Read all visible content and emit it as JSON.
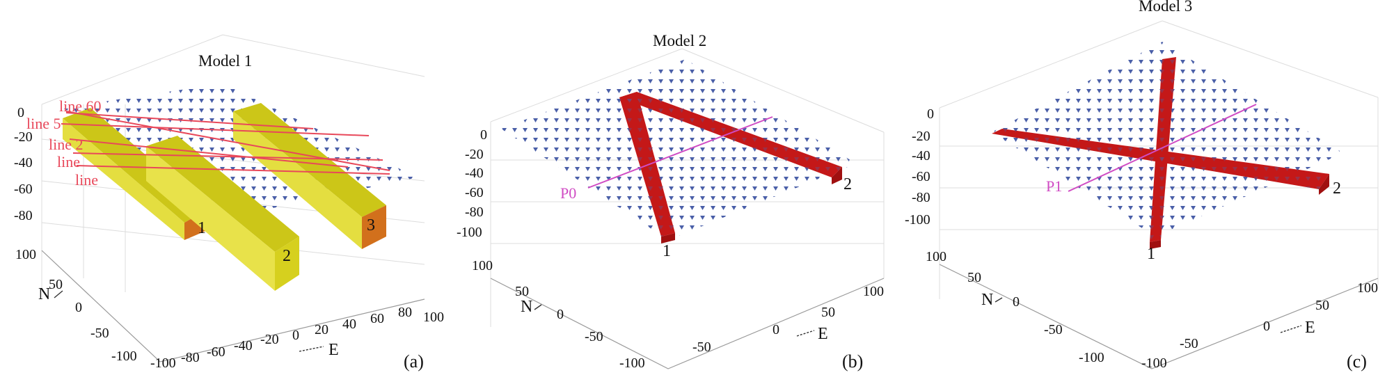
{
  "panels": [
    {
      "title": "Model 1",
      "caption": "(a)",
      "z_ticks": [
        "0",
        "-20",
        "-40",
        "-60",
        "-80"
      ],
      "n_ticks": [
        "100",
        "50",
        "0",
        "-50",
        "-100"
      ],
      "e_ticks": [
        "-100",
        "-80",
        "-60",
        "-40",
        "-20",
        "0",
        "20",
        "40",
        "60",
        "80",
        "100"
      ],
      "n_axis_label": "N",
      "e_axis_label": "E",
      "line_labels": [
        "line 60",
        "line 5",
        "line 2",
        "line",
        "line"
      ],
      "body_labels": [
        "1",
        "2",
        "3"
      ]
    },
    {
      "title": "Model 2",
      "caption": "(b)",
      "z_ticks": [
        "0",
        "-20",
        "-40",
        "-60",
        "-80",
        "-100"
      ],
      "n_ticks": [
        "100",
        "50",
        "0",
        "-50",
        "-100"
      ],
      "e_ticks": [
        "-50",
        "0",
        "50",
        "100"
      ],
      "n_axis_label": "N",
      "e_axis_label": "E",
      "point_label": "P0",
      "body_labels": [
        "1",
        "2"
      ]
    },
    {
      "title": "Model 3",
      "caption": "(c)",
      "z_ticks": [
        "0",
        "-20",
        "-40",
        "-60",
        "-80",
        "-100"
      ],
      "n_ticks": [
        "100",
        "50",
        "0",
        "-50",
        "-100"
      ],
      "e_ticks": [
        "-100",
        "-50",
        "0",
        "50",
        "100"
      ],
      "n_axis_label": "N",
      "e_axis_label": "E",
      "point_label": "P1",
      "body_labels": [
        "1",
        "2"
      ]
    }
  ],
  "colors": {
    "station_marker": "#4a5fa8",
    "body_yellow": "#d8d21c",
    "body_orange": "#d2701c",
    "body_red": "#c41818",
    "profile_line_red": "#e8485a",
    "profile_line_magenta": "#d04cc4"
  }
}
